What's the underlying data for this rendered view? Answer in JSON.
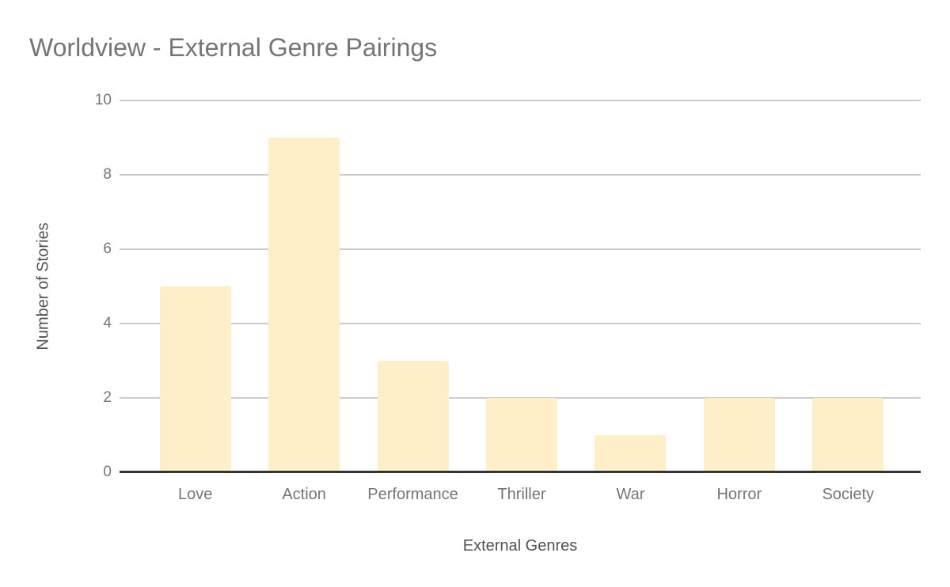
{
  "colors": {
    "bar": "#feefc9",
    "grid": "#cccccc",
    "baseline": "#333333",
    "title-text": "#757575",
    "tick-text": "#757575",
    "axis-title-text": "#525252",
    "bg": "#ffffff"
  },
  "chart_data": {
    "type": "bar",
    "title": "Worldview - External Genre Pairings",
    "categories": [
      "Love",
      "Action",
      "Performance",
      "Thriller",
      "War",
      "Horror",
      "Society"
    ],
    "values": [
      5,
      9,
      3,
      2,
      1,
      2,
      2
    ],
    "xlabel": "External Genres",
    "ylabel": "Number of Stories",
    "ylim": [
      0,
      10
    ],
    "yticks": [
      0,
      2,
      4,
      6,
      8,
      10
    ],
    "grid": true,
    "legend": "none",
    "bar_color": "#feefc9"
  }
}
